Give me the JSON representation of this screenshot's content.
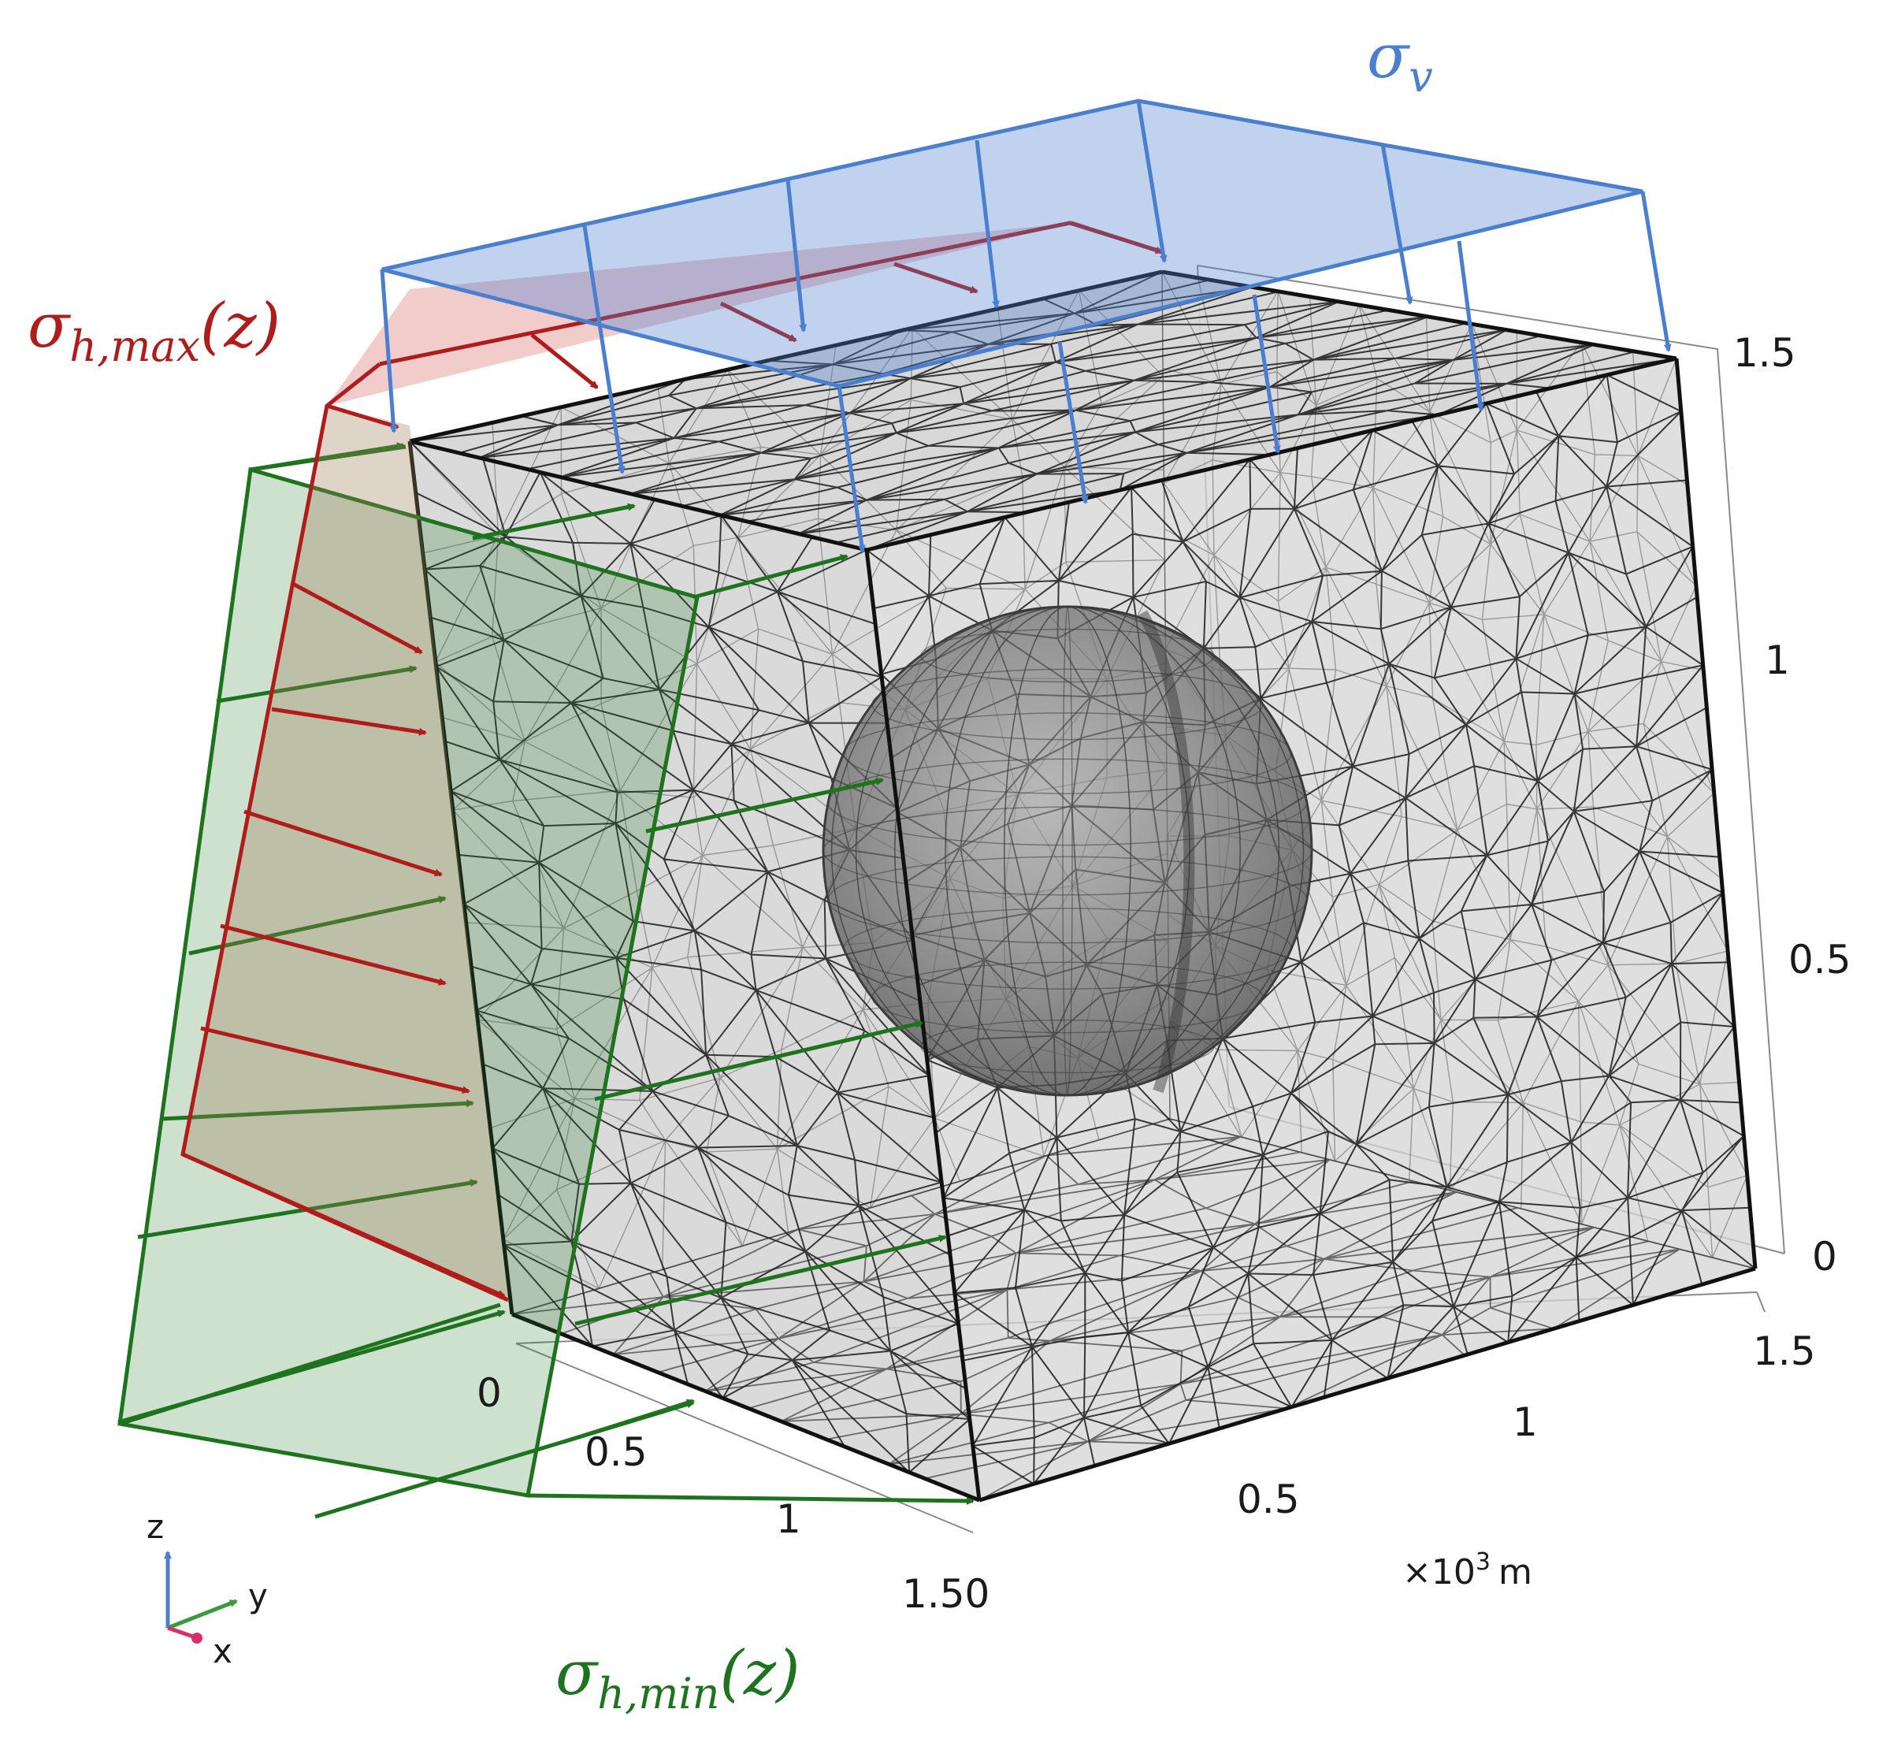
{
  "labels": {
    "sigma_v": {
      "base": "σ",
      "sub": "v",
      "color": "#4a7fcf"
    },
    "sigma_h_max": {
      "base": "σ",
      "sub": "h,max",
      "arg": "(z)",
      "color": "#b01c1c"
    },
    "sigma_h_min": {
      "base": "σ",
      "sub": "h,min",
      "arg": "(z)",
      "color": "#1e741e"
    }
  },
  "axes": {
    "z_ticks": [
      "0",
      "0.5",
      "1",
      "1.5"
    ],
    "y_ticks": [
      "0.5",
      "1",
      "1.5"
    ],
    "x_ticks": [
      "0",
      "0.5",
      "1",
      "1.50"
    ],
    "unit_prefix": "×10",
    "unit_exp": "3",
    "unit_suffix": "m"
  },
  "triad": {
    "z": "z",
    "y": "y",
    "x": "x"
  },
  "colors": {
    "mesh": "#1a1a1a",
    "box_fill": "#d4d4d4",
    "sphere": "#6a6a6a",
    "vertical_load": "#4a7fcf",
    "max_load": "#b01c1c",
    "min_load": "#1e741e"
  }
}
